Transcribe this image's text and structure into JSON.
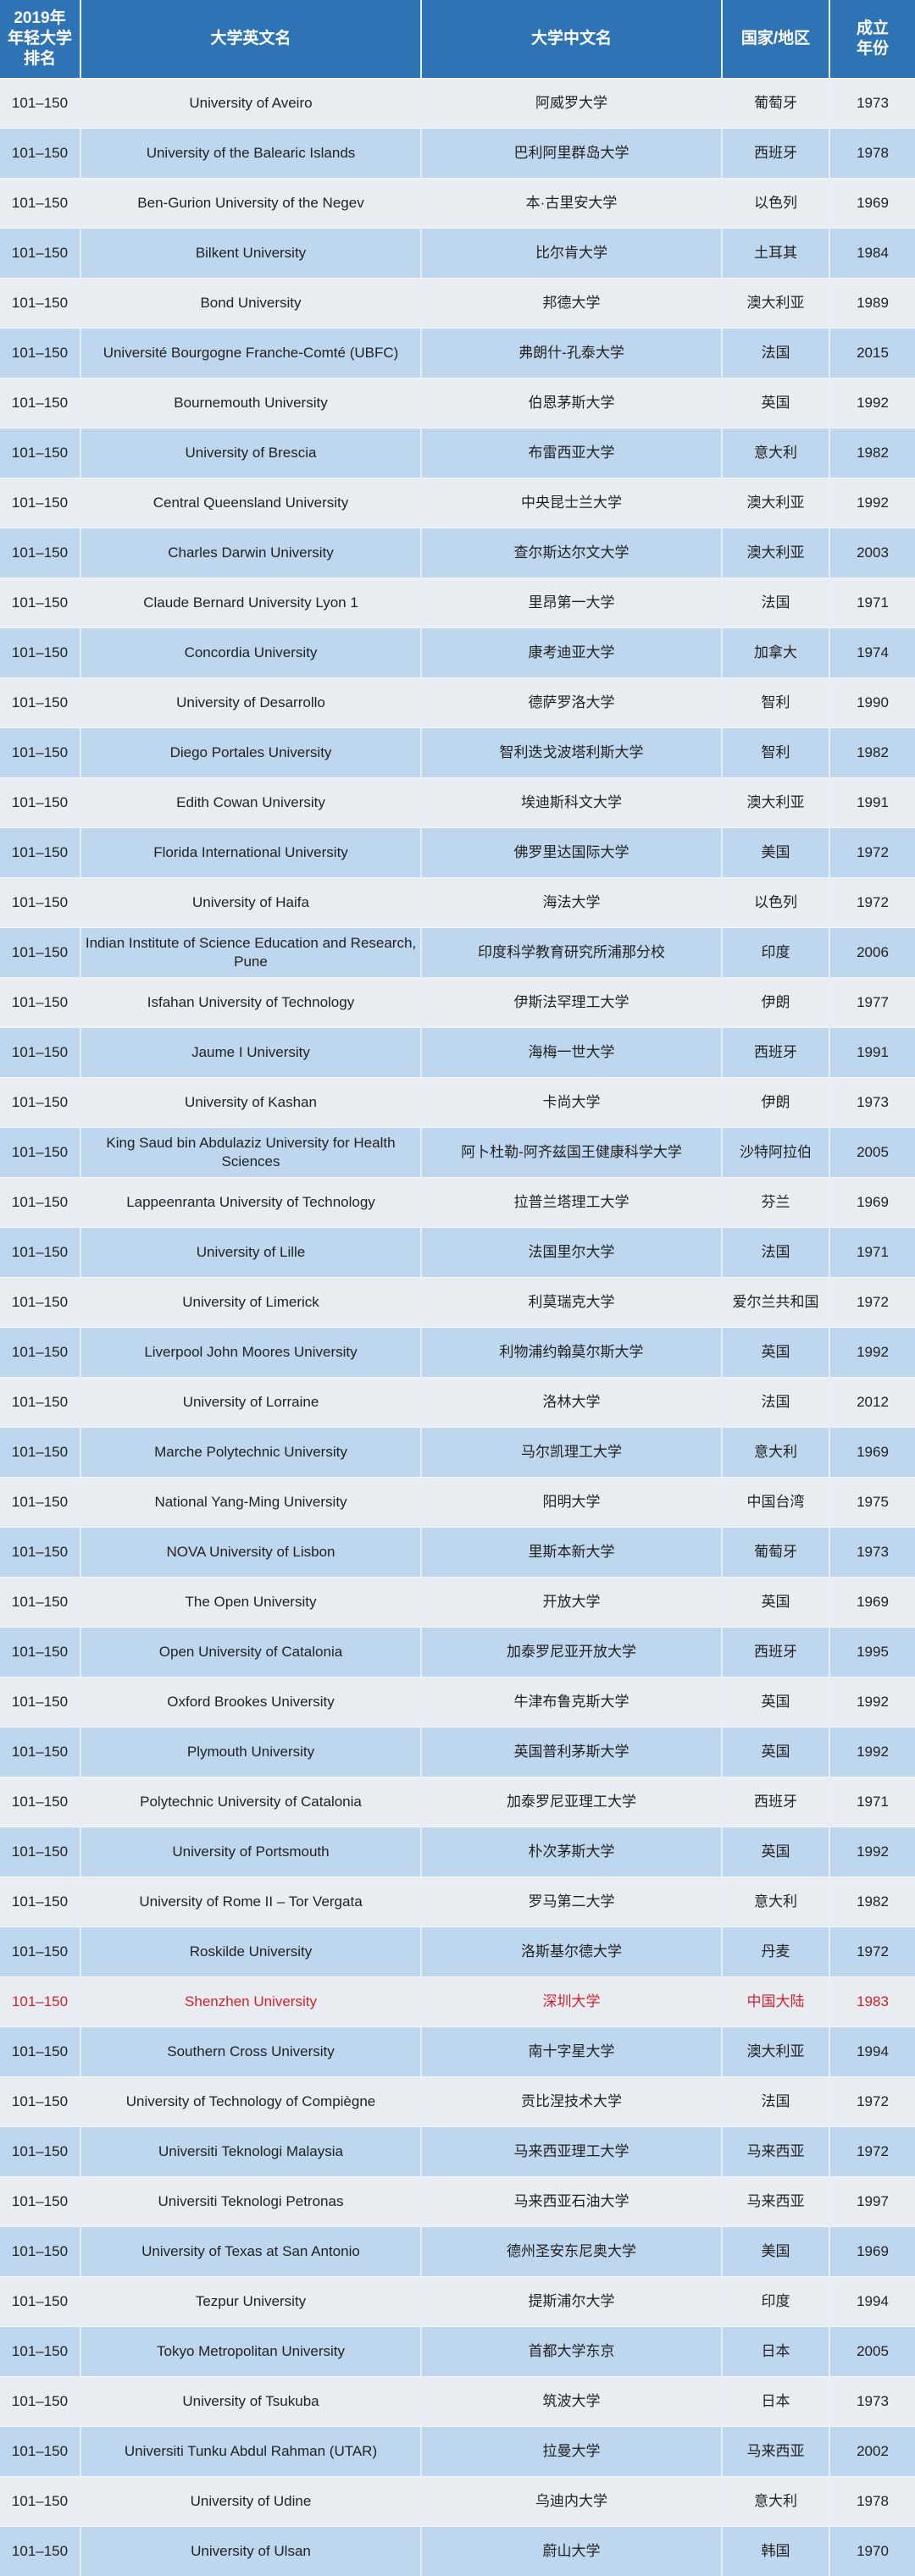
{
  "colors": {
    "header": "#2e74b5",
    "row_light": "#e9edf2",
    "row_blue": "#bfd7ee",
    "highlight": "#d1222e"
  },
  "headers": [
    "2019年\n年轻大学\n排名",
    "大学英文名",
    "大学中文名",
    "国家/地区",
    "成立\n年份"
  ],
  "rows": [
    [
      "101–150",
      "University of Aveiro",
      "阿威罗大学",
      "葡萄牙",
      "1973"
    ],
    [
      "101–150",
      "University of the Balearic Islands",
      "巴利阿里群岛大学",
      "西班牙",
      "1978"
    ],
    [
      "101–150",
      "Ben-Gurion University of the Negev",
      "本·古里安大学",
      "以色列",
      "1969"
    ],
    [
      "101–150",
      "Bilkent University",
      "比尔肯大学",
      "土耳其",
      "1984"
    ],
    [
      "101–150",
      "Bond University",
      "邦德大学",
      "澳大利亚",
      "1989"
    ],
    [
      "101–150",
      "Université Bourgogne Franche-Comté (UBFC)",
      "弗朗什-孔泰大学",
      "法国",
      "2015"
    ],
    [
      "101–150",
      "Bournemouth University",
      "伯恩茅斯大学",
      "英国",
      "1992"
    ],
    [
      "101–150",
      "University of Brescia",
      "布雷西亚大学",
      "意大利",
      "1982"
    ],
    [
      "101–150",
      "Central Queensland University",
      "中央昆士兰大学",
      "澳大利亚",
      "1992"
    ],
    [
      "101–150",
      "Charles Darwin University",
      "查尔斯达尔文大学",
      "澳大利亚",
      "2003"
    ],
    [
      "101–150",
      "Claude Bernard University Lyon 1",
      "里昂第一大学",
      "法国",
      "1971"
    ],
    [
      "101–150",
      "Concordia University",
      "康考迪亚大学",
      "加拿大",
      "1974"
    ],
    [
      "101–150",
      "University of Desarrollo",
      "德萨罗洛大学",
      "智利",
      "1990"
    ],
    [
      "101–150",
      "Diego Portales University",
      "智利迭戈波塔利斯大学",
      "智利",
      "1982"
    ],
    [
      "101–150",
      "Edith Cowan University",
      "埃迪斯科文大学",
      "澳大利亚",
      "1991"
    ],
    [
      "101–150",
      "Florida International University",
      "佛罗里达国际大学",
      "美国",
      "1972"
    ],
    [
      "101–150",
      "University of Haifa",
      "海法大学",
      "以色列",
      "1972"
    ],
    [
      "101–150",
      "Indian Institute of Science Education and Research, Pune",
      "印度科学教育研究所浦那分校",
      "印度",
      "2006"
    ],
    [
      "101–150",
      "Isfahan University of Technology",
      "伊斯法罕理工大学",
      "伊朗",
      "1977"
    ],
    [
      "101–150",
      "Jaume I University",
      "海梅一世大学",
      "西班牙",
      "1991"
    ],
    [
      "101–150",
      "University of Kashan",
      "卡尚大学",
      "伊朗",
      "1973"
    ],
    [
      "101–150",
      "King Saud bin Abdulaziz University for Health Sciences",
      "阿卜杜勒-阿齐兹国王健康科学大学",
      "沙特阿拉伯",
      "2005"
    ],
    [
      "101–150",
      "Lappeenranta University of Technology",
      "拉普兰塔理工大学",
      "芬兰",
      "1969"
    ],
    [
      "101–150",
      "University of Lille",
      "法国里尔大学",
      "法国",
      "1971"
    ],
    [
      "101–150",
      "University of Limerick",
      "利莫瑞克大学",
      "爱尔兰共和国",
      "1972"
    ],
    [
      "101–150",
      "Liverpool John Moores University",
      "利物浦约翰莫尔斯大学",
      "英国",
      "1992"
    ],
    [
      "101–150",
      "University of Lorraine",
      "洛林大学",
      "法国",
      "2012"
    ],
    [
      "101–150",
      "Marche Polytechnic University",
      "马尔凯理工大学",
      "意大利",
      "1969"
    ],
    [
      "101–150",
      "National Yang-Ming University",
      "阳明大学",
      "中国台湾",
      "1975"
    ],
    [
      "101–150",
      "NOVA University of Lisbon",
      "里斯本新大学",
      "葡萄牙",
      "1973"
    ],
    [
      "101–150",
      "The Open University",
      "开放大学",
      "英国",
      "1969"
    ],
    [
      "101–150",
      "Open University of Catalonia",
      "加泰罗尼亚开放大学",
      "西班牙",
      "1995"
    ],
    [
      "101–150",
      "Oxford Brookes University",
      "牛津布鲁克斯大学",
      "英国",
      "1992"
    ],
    [
      "101–150",
      "Plymouth University",
      "英国普利茅斯大学",
      "英国",
      "1992"
    ],
    [
      "101–150",
      "Polytechnic University of Catalonia",
      "加泰罗尼亚理工大学",
      "西班牙",
      "1971"
    ],
    [
      "101–150",
      "University of Portsmouth",
      "朴次茅斯大学",
      "英国",
      "1992"
    ],
    [
      "101–150",
      "University of Rome II – Tor Vergata",
      "罗马第二大学",
      "意大利",
      "1982"
    ],
    [
      "101–150",
      "Roskilde University",
      "洛斯基尔德大学",
      "丹麦",
      "1972"
    ],
    [
      "101–150",
      "Shenzhen University",
      "深圳大学",
      "中国大陆",
      "1983"
    ],
    [
      "101–150",
      "Southern Cross University",
      "南十字星大学",
      "澳大利亚",
      "1994"
    ],
    [
      "101–150",
      "University of Technology of Compiègne",
      "贡比涅技术大学",
      "法国",
      "1972"
    ],
    [
      "101–150",
      "Universiti Teknologi Malaysia",
      "马来西亚理工大学",
      "马来西亚",
      "1972"
    ],
    [
      "101–150",
      "Universiti Teknologi Petronas",
      "马来西亚石油大学",
      "马来西亚",
      "1997"
    ],
    [
      "101–150",
      "University of Texas at San Antonio",
      "德州圣安东尼奥大学",
      "美国",
      "1969"
    ],
    [
      "101–150",
      "Tezpur University",
      "提斯浦尔大学",
      "印度",
      "1994"
    ],
    [
      "101–150",
      "Tokyo Metropolitan University",
      "首都大学东京",
      "日本",
      "2005"
    ],
    [
      "101–150",
      "University of Tsukuba",
      "筑波大学",
      "日本",
      "1973"
    ],
    [
      "101–150",
      "Universiti Tunku Abdul Rahman (UTAR)",
      "拉曼大学",
      "马来西亚",
      "2002"
    ],
    [
      "101–150",
      "University of Udine",
      "乌迪内大学",
      "意大利",
      "1978"
    ],
    [
      "101–150",
      "University of Ulsan",
      "蔚山大学",
      "韩国",
      "1970"
    ]
  ],
  "highlight_row": 38
}
